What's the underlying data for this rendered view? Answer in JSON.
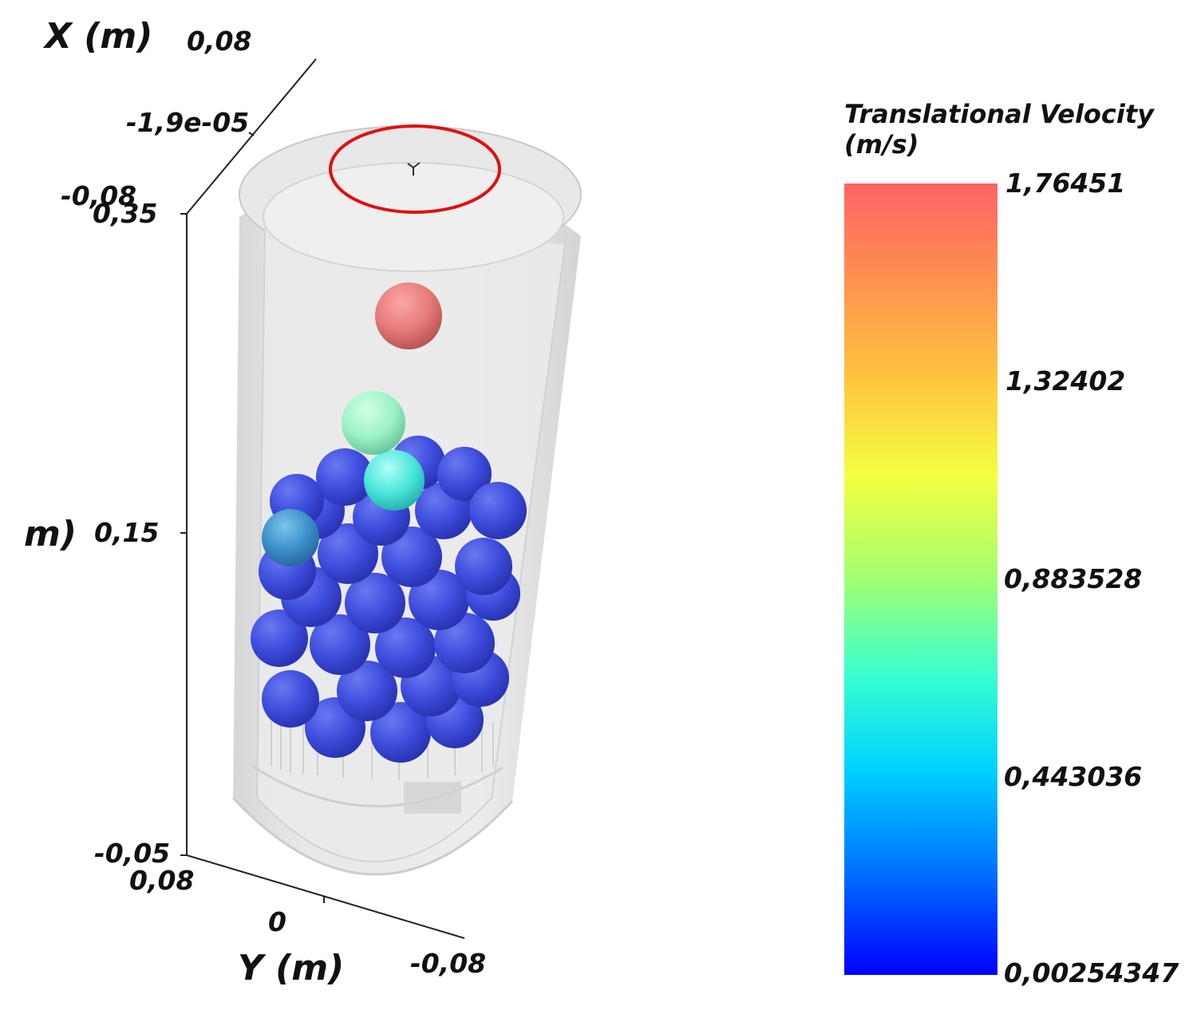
{
  "axes": {
    "x_title": "X (m)",
    "x_ticks": [
      "0,08",
      "-1,9e-05",
      "-0,08"
    ],
    "z_title_partial": "m)",
    "z_ticks": [
      "0,35",
      "0,15",
      "-0,05"
    ],
    "y_title": "Y (m)",
    "y_ticks": [
      "0,08",
      "0",
      "-0,08"
    ]
  },
  "legend": {
    "title_line1": "Translational Velocity",
    "title_line2": "(m/s)",
    "ticks": [
      "1,76451",
      "1,32402",
      "0,883528",
      "0,443036",
      "0,00254347"
    ],
    "colors": [
      "#ff6464",
      "#ffc640",
      "#a2ff72",
      "#00d2ff",
      "#0000ff"
    ]
  },
  "scene": {
    "cylinder_color": "#d8d8d8",
    "highlight_ring_color": "#e01010",
    "particle_low_color": "#3e4fdc",
    "particle_high_color": "#e46060"
  }
}
